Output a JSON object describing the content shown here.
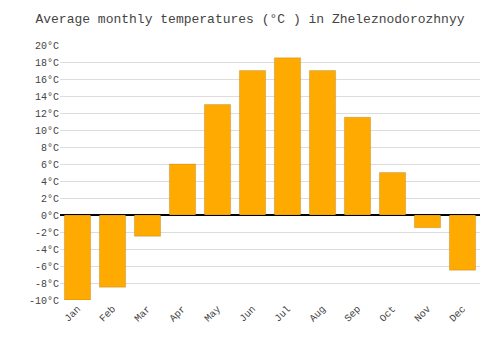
{
  "chart_data": {
    "type": "bar",
    "title": "Average monthly temperatures (°C ) in Zheleznodorozhnyy",
    "categories": [
      "Jan",
      "Feb",
      "Mar",
      "Apr",
      "May",
      "Jun",
      "Jul",
      "Aug",
      "Sep",
      "Oct",
      "Nov",
      "Dec"
    ],
    "values": [
      -10,
      -8.5,
      -2.5,
      6,
      13,
      17,
      18.5,
      17,
      11.5,
      5,
      -1.5,
      -6.5
    ],
    "color": "#FFAA00",
    "ylim": [
      -10,
      20
    ],
    "yticks": [
      {
        "value": -10,
        "label": "-10°C"
      },
      {
        "value": -8,
        "label": "-8°C"
      },
      {
        "value": -6,
        "label": "-6°C"
      },
      {
        "value": -4,
        "label": "-4°C"
      },
      {
        "value": -2,
        "label": "-2°C"
      },
      {
        "value": 0,
        "label": "0°C"
      },
      {
        "value": 2,
        "label": "2°C"
      },
      {
        "value": 4,
        "label": "4°C"
      },
      {
        "value": 6,
        "label": "6°C"
      },
      {
        "value": 8,
        "label": "8°C"
      },
      {
        "value": 10,
        "label": "10°C"
      },
      {
        "value": 12,
        "label": "12°C"
      },
      {
        "value": 14,
        "label": "14°C"
      },
      {
        "value": 16,
        "label": "16°C"
      },
      {
        "value": 18,
        "label": "18°C"
      },
      {
        "value": 20,
        "label": "20°C"
      }
    ],
    "grid": true
  }
}
